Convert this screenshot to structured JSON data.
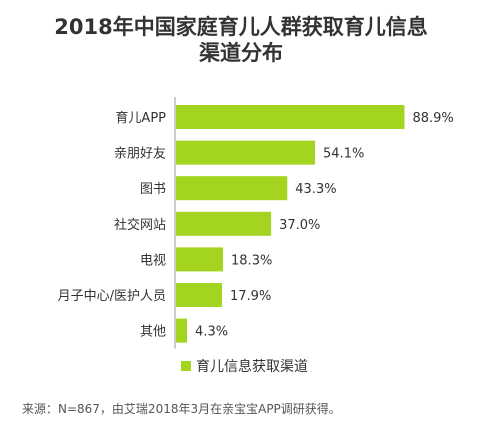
{
  "title_line1": "2018年中国家庭育儿人群获取育儿信息",
  "title_line2": "渠道分布",
  "source": "来源：N=867，由艾瑞2018年3月在亲宝宝APP调研获得。",
  "colors": {
    "bar": "#a3d41f",
    "axis": "#9a9a9a",
    "text": "#333333"
  },
  "chart_data": {
    "type": "bar",
    "orientation": "horizontal",
    "title": "2018年中国家庭育儿人群获取育儿信息渠道分布",
    "categories": [
      "育儿APP",
      "亲朋好友",
      "图书",
      "社交网站",
      "电视",
      "月子中心/医护人员",
      "其他"
    ],
    "series": [
      {
        "name": "育儿信息获取渠道",
        "values": [
          88.9,
          54.1,
          43.3,
          37.0,
          18.3,
          17.9,
          4.3
        ],
        "labels": [
          "88.9%",
          "54.1%",
          "43.3%",
          "37.0%",
          "18.3%",
          "17.9%",
          "4.3%"
        ]
      }
    ],
    "xlim": [
      0,
      100
    ],
    "grid": false,
    "legend_position": "bottom"
  }
}
